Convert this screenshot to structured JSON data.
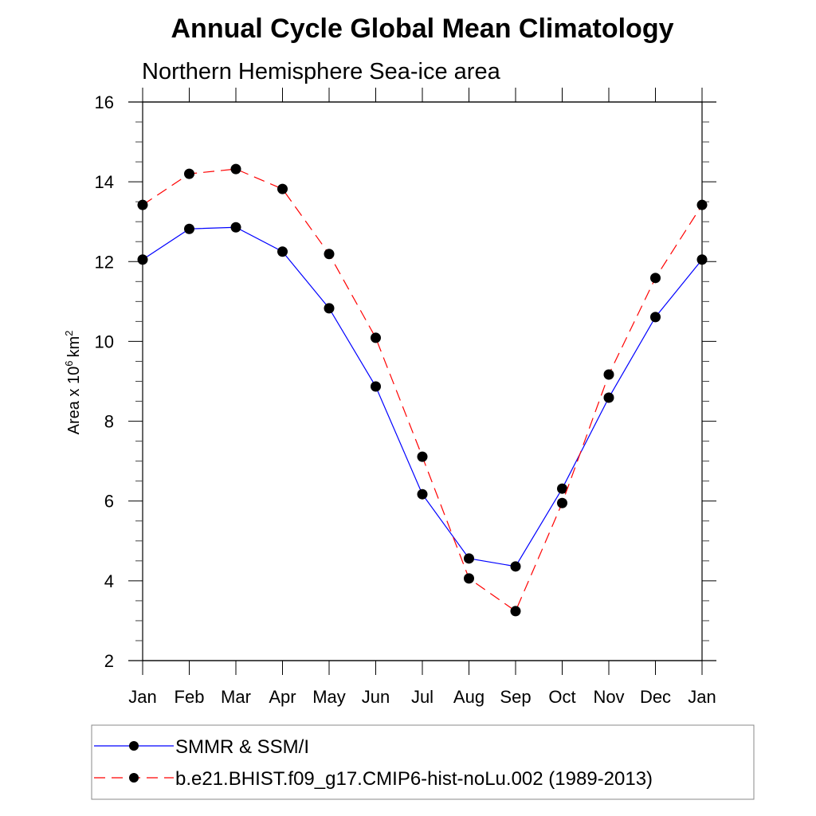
{
  "chart_data": {
    "type": "line",
    "title": "Annual Cycle Global Mean Climatology",
    "subtitle": "Northern Hemisphere Sea-ice area",
    "xlabel": "",
    "ylabel": "Area x 10",
    "ylabel_superscript": "6",
    "ylabel_unit": "km",
    "ylabel_unit_superscript": "2",
    "categories": [
      "Jan",
      "Feb",
      "Mar",
      "Apr",
      "May",
      "Jun",
      "Jul",
      "Aug",
      "Sep",
      "Oct",
      "Nov",
      "Dec",
      "Jan"
    ],
    "ylim": [
      2,
      16
    ],
    "yticks": [
      2,
      4,
      6,
      8,
      10,
      12,
      14,
      16
    ],
    "y_minor_step": 0.5,
    "grid": false,
    "legend_position": "bottom",
    "series": [
      {
        "name": "SMMR & SSM/I",
        "color": "#0000ff",
        "line_style": "solid",
        "marker": "filled-circle",
        "values": [
          12.05,
          12.82,
          12.86,
          12.25,
          10.83,
          8.87,
          6.17,
          4.56,
          4.36,
          6.31,
          8.59,
          10.61,
          12.05
        ]
      },
      {
        "name": "b.e21.BHIST.f09_g17.CMIP6-hist-noLu.002 (1989-2013)",
        "color": "#ff0000",
        "line_style": "dashed",
        "marker": "filled-circle",
        "values": [
          13.42,
          14.2,
          14.32,
          13.82,
          12.19,
          10.09,
          7.11,
          4.06,
          3.24,
          5.95,
          9.17,
          11.59,
          13.42
        ]
      }
    ]
  }
}
